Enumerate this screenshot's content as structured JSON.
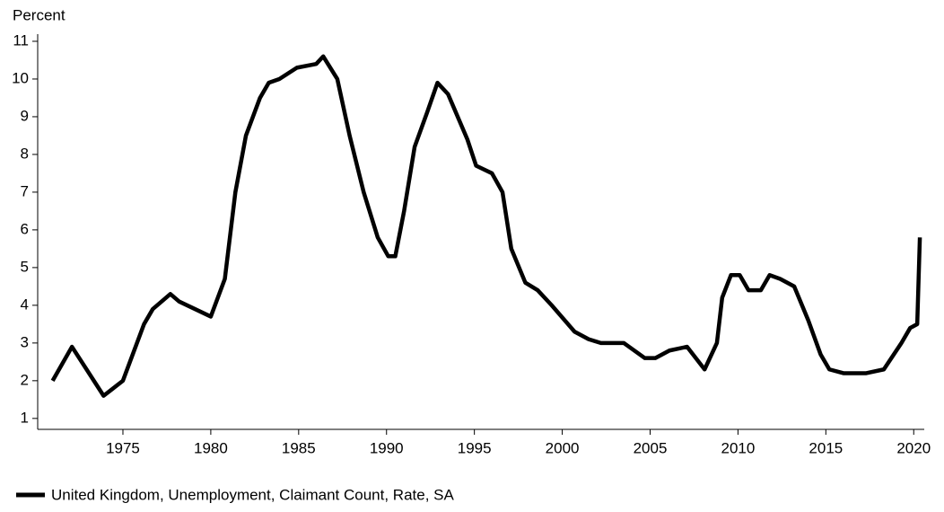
{
  "chart_data": {
    "type": "line",
    "y_label": "Percent",
    "x": [
      1971.0,
      1972.1,
      1973.9,
      1975.0,
      1976.2,
      1976.7,
      1977.7,
      1978.2,
      1979.1,
      1980.0,
      1980.8,
      1981.4,
      1982.0,
      1982.8,
      1983.3,
      1983.9,
      1984.9,
      1986.0,
      1986.4,
      1987.2,
      1987.9,
      1988.7,
      1989.5,
      1990.1,
      1990.5,
      1991.0,
      1991.6,
      1992.3,
      1992.9,
      1993.5,
      1994.6,
      1995.1,
      1996.0,
      1996.6,
      1997.1,
      1997.9,
      1998.6,
      1999.4,
      2000.7,
      2001.5,
      2002.2,
      2003.5,
      2004.7,
      2005.3,
      2006.1,
      2007.1,
      2007.6,
      2008.1,
      2008.8,
      2009.1,
      2009.6,
      2010.1,
      2010.6,
      2011.3,
      2011.8,
      2012.4,
      2013.2,
      2014.0,
      2014.7,
      2015.2,
      2016.0,
      2017.3,
      2018.3,
      2019.3,
      2019.8,
      2020.2,
      2020.35
    ],
    "series": [
      {
        "name": "United Kingdom, Unemployment, Claimant Count, Rate, SA",
        "color": "#000000",
        "values": [
          2.0,
          2.9,
          1.6,
          2.0,
          3.5,
          3.9,
          4.3,
          4.1,
          3.9,
          3.7,
          4.7,
          7.0,
          8.5,
          9.5,
          9.9,
          10.0,
          10.3,
          10.4,
          10.6,
          10.0,
          8.5,
          7.0,
          5.8,
          5.3,
          5.3,
          6.5,
          8.2,
          9.1,
          9.9,
          9.6,
          8.4,
          7.7,
          7.5,
          7.0,
          5.5,
          4.6,
          4.4,
          4.0,
          3.3,
          3.1,
          3.0,
          3.0,
          2.6,
          2.6,
          2.8,
          2.9,
          2.6,
          2.3,
          3.0,
          4.2,
          4.8,
          4.8,
          4.4,
          4.4,
          4.8,
          4.7,
          4.5,
          3.6,
          2.7,
          2.3,
          2.2,
          2.2,
          2.3,
          3.0,
          3.4,
          3.5,
          5.8
        ]
      }
    ],
    "xlim": [
      1970.15,
      2020.6
    ],
    "ylim": [
      0.71,
      11.19
    ],
    "xticks": [
      1975,
      1980,
      1985,
      1990,
      1995,
      2000,
      2005,
      2010,
      2015,
      2020
    ],
    "yticks": [
      1,
      2,
      3,
      4,
      5,
      6,
      7,
      8,
      9,
      10,
      11
    ]
  }
}
